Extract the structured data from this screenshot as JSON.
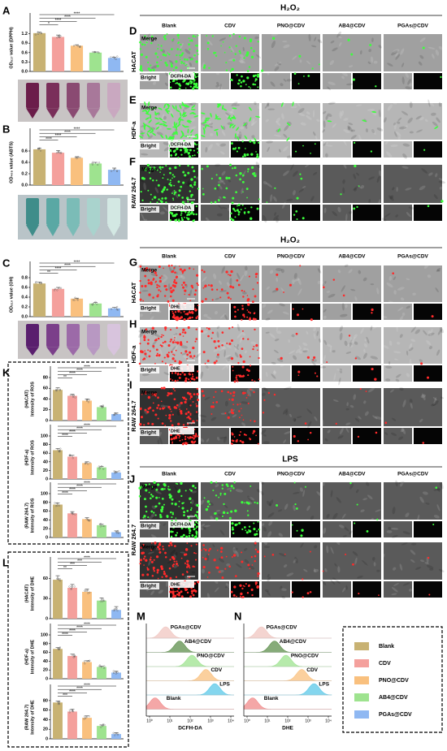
{
  "chart_data": [
    {
      "type": "bar",
      "label": "A",
      "ylabel": [
        "OD₅₁₇ value (DPPH)"
      ],
      "categories": [
        null,
        null,
        null,
        null,
        null
      ],
      "values": [
        1.22,
        1.1,
        0.82,
        0.6,
        0.43
      ],
      "errors": [
        0.03,
        0.06,
        0.03,
        0.02,
        0.02
      ],
      "ylim": [
        0,
        1.5
      ],
      "yticks": [
        {
          "value": 0,
          "label": "0.0"
        },
        0.3,
        0.6,
        0.9,
        1.2
      ],
      "brackets": [
        "*",
        "****",
        "****",
        "****"
      ]
    },
    {
      "type": "bar",
      "label": "B",
      "ylabel": [
        "OD₄₀₅ value (ABTS)"
      ],
      "categories": [
        null,
        null,
        null,
        null,
        null
      ],
      "values": [
        0.63,
        0.57,
        0.48,
        0.38,
        0.27
      ],
      "errors": [
        0.02,
        0.04,
        0.02,
        0.02,
        0.03
      ],
      "ylim": [
        0,
        0.8
      ],
      "yticks": [
        {
          "value": 0,
          "label": "0.0"
        },
        0.2,
        0.4,
        0.6
      ],
      "brackets": [
        "****",
        "****",
        "****",
        "****"
      ]
    },
    {
      "type": "bar",
      "label": "C",
      "ylabel": [
        "OD₅₁₀ value (OH)"
      ],
      "categories": [
        null,
        null,
        null,
        null,
        null
      ],
      "values": [
        0.68,
        0.57,
        0.37,
        0.27,
        0.17
      ],
      "errors": [
        0.03,
        0.03,
        0.01,
        0.02,
        0.02
      ],
      "ylim": [
        0,
        0.9
      ],
      "yticks": [
        {
          "value": 0,
          "label": "0.0"
        },
        0.2,
        0.4,
        0.6,
        0.8
      ],
      "brackets": [
        "**",
        "****",
        "****",
        "****"
      ]
    },
    {
      "type": "bar",
      "ylabel": [
        "(HACAT)",
        "Intensity of ROS"
      ],
      "categories": [
        null,
        null,
        null,
        null,
        null
      ],
      "values": [
        57,
        46,
        37,
        25,
        12
      ],
      "errors": [
        4,
        3,
        3,
        2,
        2
      ],
      "ylim": [
        0,
        80
      ],
      "yticks": [
        0,
        20,
        40,
        60,
        80
      ],
      "brackets": [
        "**",
        "****",
        "****",
        "****"
      ]
    },
    {
      "type": "bar",
      "ylabel": [
        "(HDF-a)",
        "Intensity of ROS"
      ],
      "categories": [
        null,
        null,
        null,
        null,
        null
      ],
      "values": [
        67,
        52,
        37,
        27,
        15
      ],
      "errors": [
        4,
        3,
        3,
        2,
        2
      ],
      "ylim": [
        0,
        100
      ],
      "yticks": [
        0,
        20,
        40,
        60,
        80,
        100
      ],
      "brackets": [
        "****",
        "****",
        "****",
        "****"
      ]
    },
    {
      "type": "bar",
      "ylabel": [
        "(RAW 264.7)",
        "Intensity of ROS"
      ],
      "categories": [
        null,
        null,
        null,
        null,
        null
      ],
      "values": [
        75,
        55,
        42,
        28,
        12
      ],
      "errors": [
        4,
        4,
        3,
        2,
        3
      ],
      "ylim": [
        0,
        100
      ],
      "yticks": [
        0,
        20,
        40,
        60,
        80,
        100
      ],
      "brackets": [
        "****",
        "****",
        "****",
        "****"
      ]
    },
    {
      "type": "bar",
      "ylabel": [
        "(HACAT)",
        "Intensity of DHE"
      ],
      "categories": [
        null,
        null,
        null,
        null,
        null
      ],
      "values": [
        58,
        46,
        40,
        27,
        13
      ],
      "errors": [
        6,
        5,
        4,
        4,
        5
      ],
      "ylim": [
        0,
        75
      ],
      "yticks": [
        0,
        30,
        60
      ],
      "brackets": [
        "**",
        "***",
        "***",
        "****"
      ]
    },
    {
      "type": "bar",
      "ylabel": [
        "(HDF-a)",
        "Intensity of DHE"
      ],
      "categories": [
        null,
        null,
        null,
        null,
        null
      ],
      "values": [
        68,
        52,
        38,
        27,
        14
      ],
      "errors": [
        3,
        4,
        3,
        2,
        3
      ],
      "ylim": [
        0,
        100
      ],
      "yticks": [
        0,
        20,
        40,
        60,
        80,
        100
      ],
      "brackets": [
        "****",
        "****",
        "****",
        "****"
      ]
    },
    {
      "type": "bar",
      "ylabel": [
        "(RAW 264.7)",
        "Intensity of DHE"
      ],
      "categories": [
        null,
        null,
        null,
        null,
        null
      ],
      "values": [
        76,
        57,
        44,
        27,
        10
      ],
      "errors": [
        3,
        5,
        4,
        2,
        3
      ],
      "ylim": [
        0,
        90
      ],
      "yticks": [
        0,
        20,
        40,
        60,
        80
      ],
      "brackets": [
        "***",
        "****",
        "****",
        "****"
      ]
    }
  ],
  "groups": [
    {
      "letter": "K"
    },
    {
      "letter": "L"
    }
  ],
  "legend": {
    "entries": [
      {
        "name": "Blank",
        "color": "#c8b273"
      },
      {
        "name": "CDV",
        "color": "#f4a09c"
      },
      {
        "name": "PNO@CDV",
        "color": "#f9c07e"
      },
      {
        "name": "AB4@CDV",
        "color": "#9ee38f"
      },
      {
        "name": "PGAs@CDV",
        "color": "#8fb8f2"
      }
    ]
  },
  "micrographs": [
    {
      "header": "H₂O₂",
      "columns": [
        "Blank",
        "CDV",
        "PNO@CDV",
        "AB4@CDV",
        "PGAs@CDV"
      ],
      "rows": [
        {
          "letter": "D",
          "cell": "HACAT",
          "merge": "Merge",
          "bright": "Bright",
          "stain": "DCFH-DA"
        },
        {
          "letter": "E",
          "cell": "HDF-a",
          "merge": "Merge",
          "bright": "Bright",
          "stain": "DCFH-DA"
        },
        {
          "letter": "F",
          "cell": "RAW 264.7",
          "merge": "Merge",
          "bright": "Bright",
          "stain": "DCFH-DA"
        }
      ]
    },
    {
      "header": "H₂O₂",
      "columns": [
        "Blank",
        "CDV",
        "PNO@CDV",
        "AB4@CDV",
        "PGAs@CDV"
      ],
      "rows": [
        {
          "letter": "G",
          "cell": "HACAT",
          "merge": "Merge",
          "bright": "Bright",
          "stain": "DHE"
        },
        {
          "letter": "H",
          "cell": "HDF-a",
          "merge": "Merge",
          "bright": "Bright",
          "stain": "DHE"
        },
        {
          "letter": "I",
          "cell": "RAW 264.7",
          "merge": "Merge",
          "bright": "Bright",
          "stain": "DHE"
        }
      ]
    },
    {
      "header": "LPS",
      "columns": [
        "Blank",
        "CDV",
        "PNO@CDV",
        "AB4@CDV",
        "PGAs@CDV"
      ],
      "rows": [
        {
          "letter": "J",
          "cell": "RAW 264.7",
          "merge": "Merge",
          "bright": "Bright",
          "stain": "DCFH-DA"
        },
        {
          "merge": "Merge",
          "bright": "Bright",
          "stain": "DHE"
        }
      ]
    }
  ],
  "flow": [
    {
      "letter": "M",
      "xlabel": "DCFH-DA",
      "curves": [
        "PGAs@CDV",
        "AB4@CDV",
        "PNO@CDV",
        "CDV",
        "LPS",
        "Blank"
      ],
      "xtick_labels": [
        "10⁰",
        "10¹",
        "10²",
        "10³",
        "10⁴"
      ]
    },
    {
      "letter": "N",
      "xlabel": "DHE",
      "curves": [
        "PGAs@CDV",
        "AB4@CDV",
        "PNO@CDV",
        "CDV",
        "LPS",
        "Blank"
      ],
      "xtick_labels": [
        "10⁰",
        "10¹",
        "10²",
        "10³",
        "10⁴"
      ]
    }
  ]
}
